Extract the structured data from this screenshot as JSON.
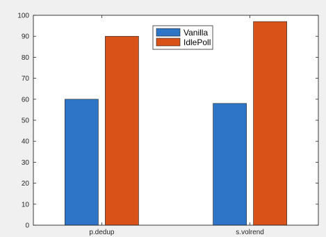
{
  "chart_data": {
    "type": "bar",
    "categories": [
      "p.dedup",
      "s.volrend"
    ],
    "series": [
      {
        "name": "Vanilla",
        "values": [
          60,
          58
        ],
        "color": "#2e75c7"
      },
      {
        "name": "IdlePoll",
        "values": [
          90,
          97
        ],
        "color": "#d95319"
      }
    ],
    "title": "",
    "xlabel": "",
    "ylabel": "",
    "ylim": [
      0,
      100
    ],
    "yticks": [
      0,
      10,
      20,
      30,
      40,
      50,
      60,
      70,
      80,
      90,
      100
    ],
    "yticklabels": [
      "0",
      "10",
      "20",
      "30",
      "40",
      "50",
      "60",
      "70",
      "80",
      "90",
      "100"
    ],
    "grid": false,
    "legend_position": "top-center"
  },
  "colors": {
    "figure_background": "#f0f0f0",
    "axes_background": "#ffffff"
  }
}
